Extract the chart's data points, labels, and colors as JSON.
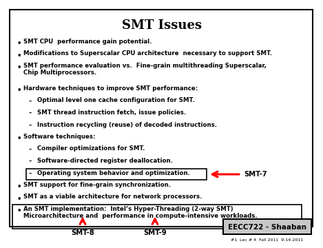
{
  "title": "SMT Issues",
  "bg_color": "#ffffff",
  "border_color": "#000000",
  "text_color": "#000000",
  "title_fontsize": 13,
  "body_fontsize": 6.2,
  "footer_text": "EECC722 - Shaaban",
  "footer_sub": "#1  Lec # 4  Fall 2011  9-14-2011",
  "smt7_label": "SMT-7",
  "smt8_label": "SMT-8",
  "smt9_label": "SMT-9",
  "bullet_items": [
    {
      "level": 0,
      "text": "SMT CPU  performance gain potential."
    },
    {
      "level": 0,
      "text": "Modifications to Superscalar CPU architecture  necessary to support SMT."
    },
    {
      "level": 0,
      "text": "SMT performance evaluation vs.  Fine-grain multithreading Superscalar,\nChip Multiprocessors.",
      "extra_indent": false
    },
    {
      "level": 0,
      "text": "Hardware techniques to improve SMT performance:"
    },
    {
      "level": 1,
      "text": "Optimal level one cache configuration for SMT."
    },
    {
      "level": 1,
      "text": "SMT thread instruction fetch, issue policies."
    },
    {
      "level": 1,
      "text": "Instruction recycling (reuse) of decoded instructions."
    },
    {
      "level": 0,
      "text": "Software techniques:"
    },
    {
      "level": 1,
      "text": "Compiler optimizations for SMT."
    },
    {
      "level": 1,
      "text": "Software-directed register deallocation."
    },
    {
      "level": 1,
      "text": "Operating system behavior and optimization.",
      "boxed": true
    },
    {
      "level": 0,
      "text": "SMT support for fine-grain synchronization."
    },
    {
      "level": 0,
      "text": "SMT as a viable architecture for network processors."
    },
    {
      "level": 0,
      "text": "An SMT implementation:  Intel’s Hyper-Threading (2-way SMT)\nMicroarchitecture and  performance in compute-intensive workloads.",
      "boxed_item": true
    }
  ]
}
